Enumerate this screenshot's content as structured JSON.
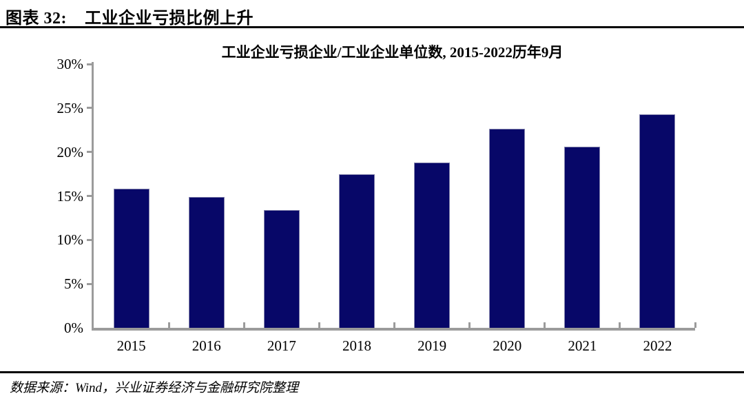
{
  "header": {
    "label": "图表 32:",
    "title": "工业企业亏损比例上升"
  },
  "footer": {
    "source": "数据来源：Wind，兴业证券经济与金融研究院整理"
  },
  "chart_data": {
    "type": "bar",
    "title": "工业企业亏损企业/工业企业单位数, 2015-2022历年9月",
    "categories": [
      "2015",
      "2016",
      "2017",
      "2018",
      "2019",
      "2020",
      "2021",
      "2022"
    ],
    "values": [
      15.8,
      14.9,
      13.4,
      17.5,
      18.8,
      22.6,
      20.6,
      24.3
    ],
    "unit": "%",
    "xlabel": "",
    "ylabel": "",
    "ylim": [
      0,
      30
    ],
    "ytick_step": 5,
    "yticks": [
      "30%",
      "25%",
      "20%",
      "15%",
      "10%",
      "5%",
      "0%"
    ],
    "grid": false,
    "legend": "none",
    "bar_color": "#070768",
    "bar_border_color": "#8484ad",
    "axis_color": "#9b9b9b"
  }
}
